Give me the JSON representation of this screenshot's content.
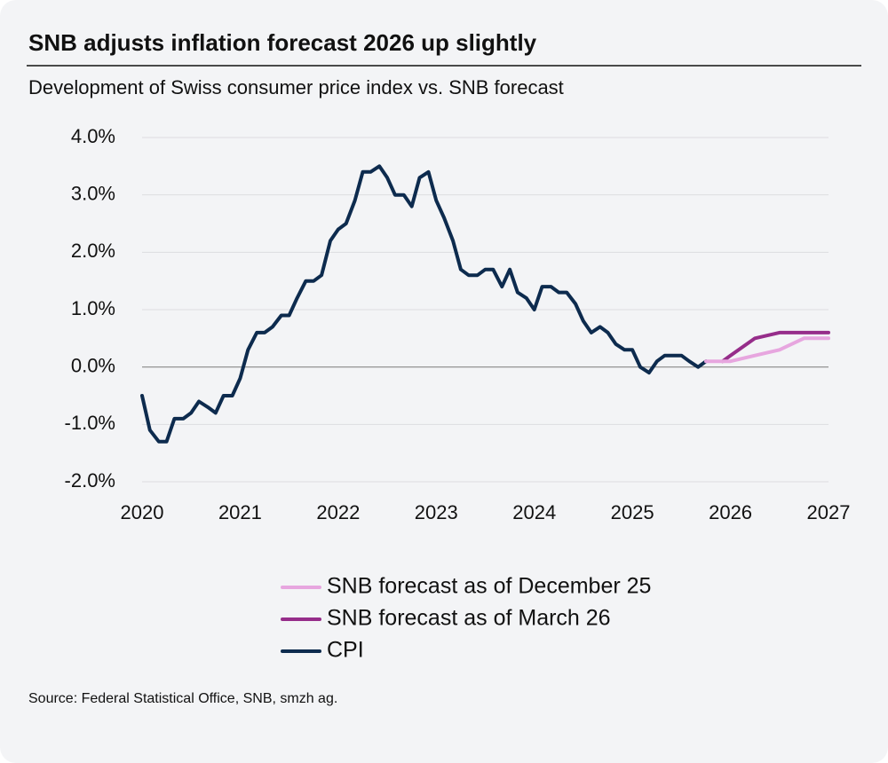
{
  "chart_data": {
    "type": "line",
    "title": "SNB adjusts inflation forecast 2026 up slightly",
    "subtitle": "Development of Swiss consumer price index vs. SNB forecast",
    "source": "Source: Federal Statistical Office, SNB, smzh ag.",
    "xlim": [
      2020,
      2027
    ],
    "xticks": [
      2020,
      2021,
      2022,
      2023,
      2024,
      2025,
      2026,
      2027
    ],
    "ylim": [
      -2,
      4
    ],
    "yticks": [
      {
        "value": -2,
        "label": "-2.0%"
      },
      {
        "value": -1,
        "label": "-1.0%"
      },
      {
        "value": 0,
        "label": "0.0%"
      },
      {
        "value": 1,
        "label": "1.0%"
      },
      {
        "value": 2,
        "label": "2.0%"
      },
      {
        "value": 3,
        "label": "3.0%"
      },
      {
        "value": 4,
        "label": "4.0%"
      }
    ],
    "grid": true,
    "legend": "bottom",
    "series": [
      {
        "name": "SNB forecast as of December 25",
        "color": "#e7a6df",
        "x": [
          2025.75,
          2026.0,
          2026.25,
          2026.5,
          2026.75,
          2027.0
        ],
        "values": [
          0.1,
          0.1,
          0.2,
          0.3,
          0.5,
          0.5
        ]
      },
      {
        "name": "SNB forecast as of March 26",
        "color": "#962d8a",
        "x": [
          2025.92,
          2026.0,
          2026.25,
          2026.5,
          2026.75,
          2027.0
        ],
        "values": [
          0.1,
          0.2,
          0.5,
          0.6,
          0.6,
          0.6
        ]
      },
      {
        "name": "CPI",
        "color": "#0d2b4e",
        "x": [
          2020.0,
          2020.08,
          2020.17,
          2020.25,
          2020.33,
          2020.42,
          2020.5,
          2020.58,
          2020.67,
          2020.75,
          2020.83,
          2020.92,
          2021.0,
          2021.08,
          2021.17,
          2021.25,
          2021.33,
          2021.42,
          2021.5,
          2021.58,
          2021.67,
          2021.75,
          2021.83,
          2021.92,
          2022.0,
          2022.08,
          2022.17,
          2022.25,
          2022.33,
          2022.42,
          2022.5,
          2022.58,
          2022.67,
          2022.75,
          2022.83,
          2022.92,
          2023.0,
          2023.08,
          2023.17,
          2023.25,
          2023.33,
          2023.42,
          2023.5,
          2023.58,
          2023.67,
          2023.75,
          2023.83,
          2023.92,
          2024.0,
          2024.08,
          2024.17,
          2024.25,
          2024.33,
          2024.42,
          2024.5,
          2024.58,
          2024.67,
          2024.75,
          2024.83,
          2024.92,
          2025.0,
          2025.08,
          2025.17,
          2025.25,
          2025.33,
          2025.42,
          2025.5,
          2025.58,
          2025.67,
          2025.75
        ],
        "values": [
          -0.5,
          -1.1,
          -1.3,
          -1.3,
          -0.9,
          -0.9,
          -0.8,
          -0.6,
          -0.7,
          -0.8,
          -0.5,
          -0.5,
          -0.2,
          0.3,
          0.6,
          0.6,
          0.7,
          0.9,
          0.9,
          1.2,
          1.5,
          1.5,
          1.6,
          2.2,
          2.4,
          2.5,
          2.9,
          3.4,
          3.4,
          3.5,
          3.3,
          3.0,
          3.0,
          2.8,
          3.3,
          3.4,
          2.9,
          2.6,
          2.2,
          1.7,
          1.6,
          1.6,
          1.7,
          1.7,
          1.4,
          1.7,
          1.3,
          1.2,
          1.0,
          1.4,
          1.4,
          1.3,
          1.3,
          1.1,
          0.8,
          0.6,
          0.7,
          0.6,
          0.4,
          0.3,
          0.3,
          0.0,
          -0.1,
          0.1,
          0.2,
          0.2,
          0.2,
          0.1,
          0.0,
          0.1
        ]
      }
    ]
  }
}
